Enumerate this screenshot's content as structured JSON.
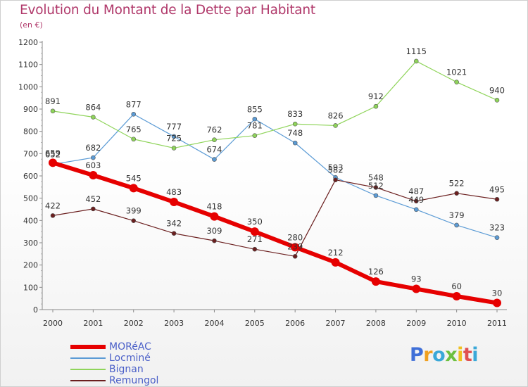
{
  "header": {
    "title": "Evolution du Montant de la Dette par Habitant",
    "subtitle": "(en €)"
  },
  "chart_data": {
    "type": "line",
    "title": "Evolution du Montant de la Dette par Habitant",
    "subtitle": "(en €)",
    "xlabel": "",
    "ylabel": "",
    "categories": [
      "2000",
      "2001",
      "2002",
      "2003",
      "2004",
      "2005",
      "2006",
      "2007",
      "2008",
      "2009",
      "2010",
      "2011"
    ],
    "ylim": [
      0,
      1200
    ],
    "yticks": [
      0,
      100,
      200,
      300,
      400,
      500,
      600,
      700,
      800,
      900,
      1000,
      1100,
      1200
    ],
    "grid": "none",
    "legend_position": "bottom-left",
    "series": [
      {
        "name": "MORéAC",
        "color": "#e60000",
        "values": [
          659,
          603,
          545,
          483,
          418,
          350,
          280,
          212,
          126,
          93,
          60,
          30
        ]
      },
      {
        "name": "Locminé",
        "color": "#5b9bd5",
        "values": [
          652,
          682,
          877,
          777,
          674,
          855,
          748,
          593,
          512,
          449,
          379,
          323
        ]
      },
      {
        "name": "Bignan",
        "color": "#8fd45a",
        "values": [
          891,
          864,
          765,
          725,
          762,
          781,
          833,
          826,
          912,
          1115,
          1021,
          940
        ]
      },
      {
        "name": "Remungol",
        "color": "#6b1f1f",
        "values": [
          422,
          452,
          399,
          342,
          309,
          271,
          239,
          582,
          548,
          487,
          522,
          495
        ]
      }
    ]
  },
  "logo": {
    "letters": [
      "P",
      "r",
      "o",
      "x",
      "i",
      "t",
      "i"
    ],
    "colors": [
      "#3f6fd8",
      "#f0a020",
      "#3aa8d8",
      "#6cc040",
      "#f0c020",
      "#e05050",
      "#3aa8d8"
    ]
  }
}
